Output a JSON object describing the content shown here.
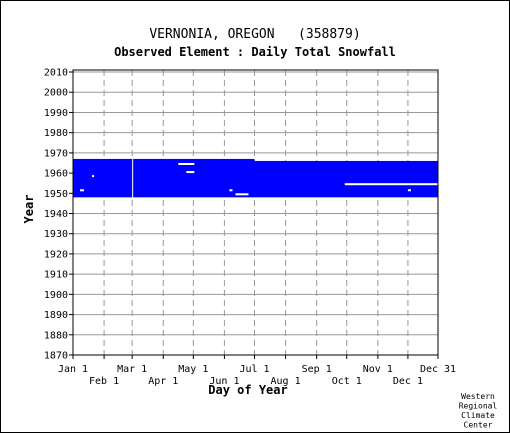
{
  "chart_data": {
    "type": "heatmap",
    "title": "VERNONIA, OREGON   (358879)",
    "subtitle": "Observed Element : Daily Total Snowfall",
    "xlabel": "Day of Year",
    "ylabel": "Year",
    "xlim": [
      1,
      365
    ],
    "ylim": [
      1870,
      2011
    ],
    "grid": true,
    "x_ticks_row1": [
      {
        "label": "Jan 1",
        "day": 1
      },
      {
        "label": "Mar 1",
        "day": 60
      },
      {
        "label": "May 1",
        "day": 121
      },
      {
        "label": "Jul 1",
        "day": 182
      },
      {
        "label": "Sep 1",
        "day": 244
      },
      {
        "label": "Nov 1",
        "day": 305
      },
      {
        "label": "Dec 31",
        "day": 365
      }
    ],
    "x_ticks_row2": [
      {
        "label": "Feb 1",
        "day": 32
      },
      {
        "label": "Apr 1",
        "day": 91
      },
      {
        "label": "Jun 1",
        "day": 152
      },
      {
        "label": "Aug 1",
        "day": 213
      },
      {
        "label": "Oct 1",
        "day": 274
      },
      {
        "label": "Dec 1",
        "day": 335
      }
    ],
    "y_ticks": [
      1870,
      1880,
      1890,
      1900,
      1910,
      1920,
      1930,
      1940,
      1950,
      1960,
      1970,
      1980,
      1990,
      2000,
      2010
    ],
    "data_color": "#0000ff",
    "missing_color": "#ffffff",
    "record_blocks": [
      {
        "day_start": 1,
        "day_end": 182,
        "year_start": 1948,
        "year_end": 1967
      },
      {
        "day_start": 182,
        "day_end": 365,
        "year_start": 1948,
        "year_end": 1966
      }
    ],
    "missing_gaps": [
      {
        "day_start": 106,
        "day_end": 122,
        "year_start": 1964,
        "year_end": 1965
      },
      {
        "day_start": 114,
        "day_end": 122,
        "year_start": 1960,
        "year_end": 1961
      },
      {
        "day_start": 157,
        "day_end": 160,
        "year_start": 1951,
        "year_end": 1952
      },
      {
        "day_start": 163,
        "day_end": 176,
        "year_start": 1949,
        "year_end": 1950
      },
      {
        "day_start": 272,
        "day_end": 365,
        "year_start": 1954,
        "year_end": 1955
      },
      {
        "day_start": 335,
        "day_end": 338,
        "year_start": 1951,
        "year_end": 1952
      },
      {
        "day_start": 8,
        "day_end": 12,
        "year_start": 1951,
        "year_end": 1952
      },
      {
        "day_start": 20,
        "day_end": 22,
        "year_start": 1958,
        "year_end": 1959
      },
      {
        "day_start": 60,
        "day_end": 61,
        "year_start": 1948,
        "year_end": 1967
      }
    ],
    "credit": [
      "Western",
      "Regional",
      "Climate",
      "Center"
    ]
  }
}
